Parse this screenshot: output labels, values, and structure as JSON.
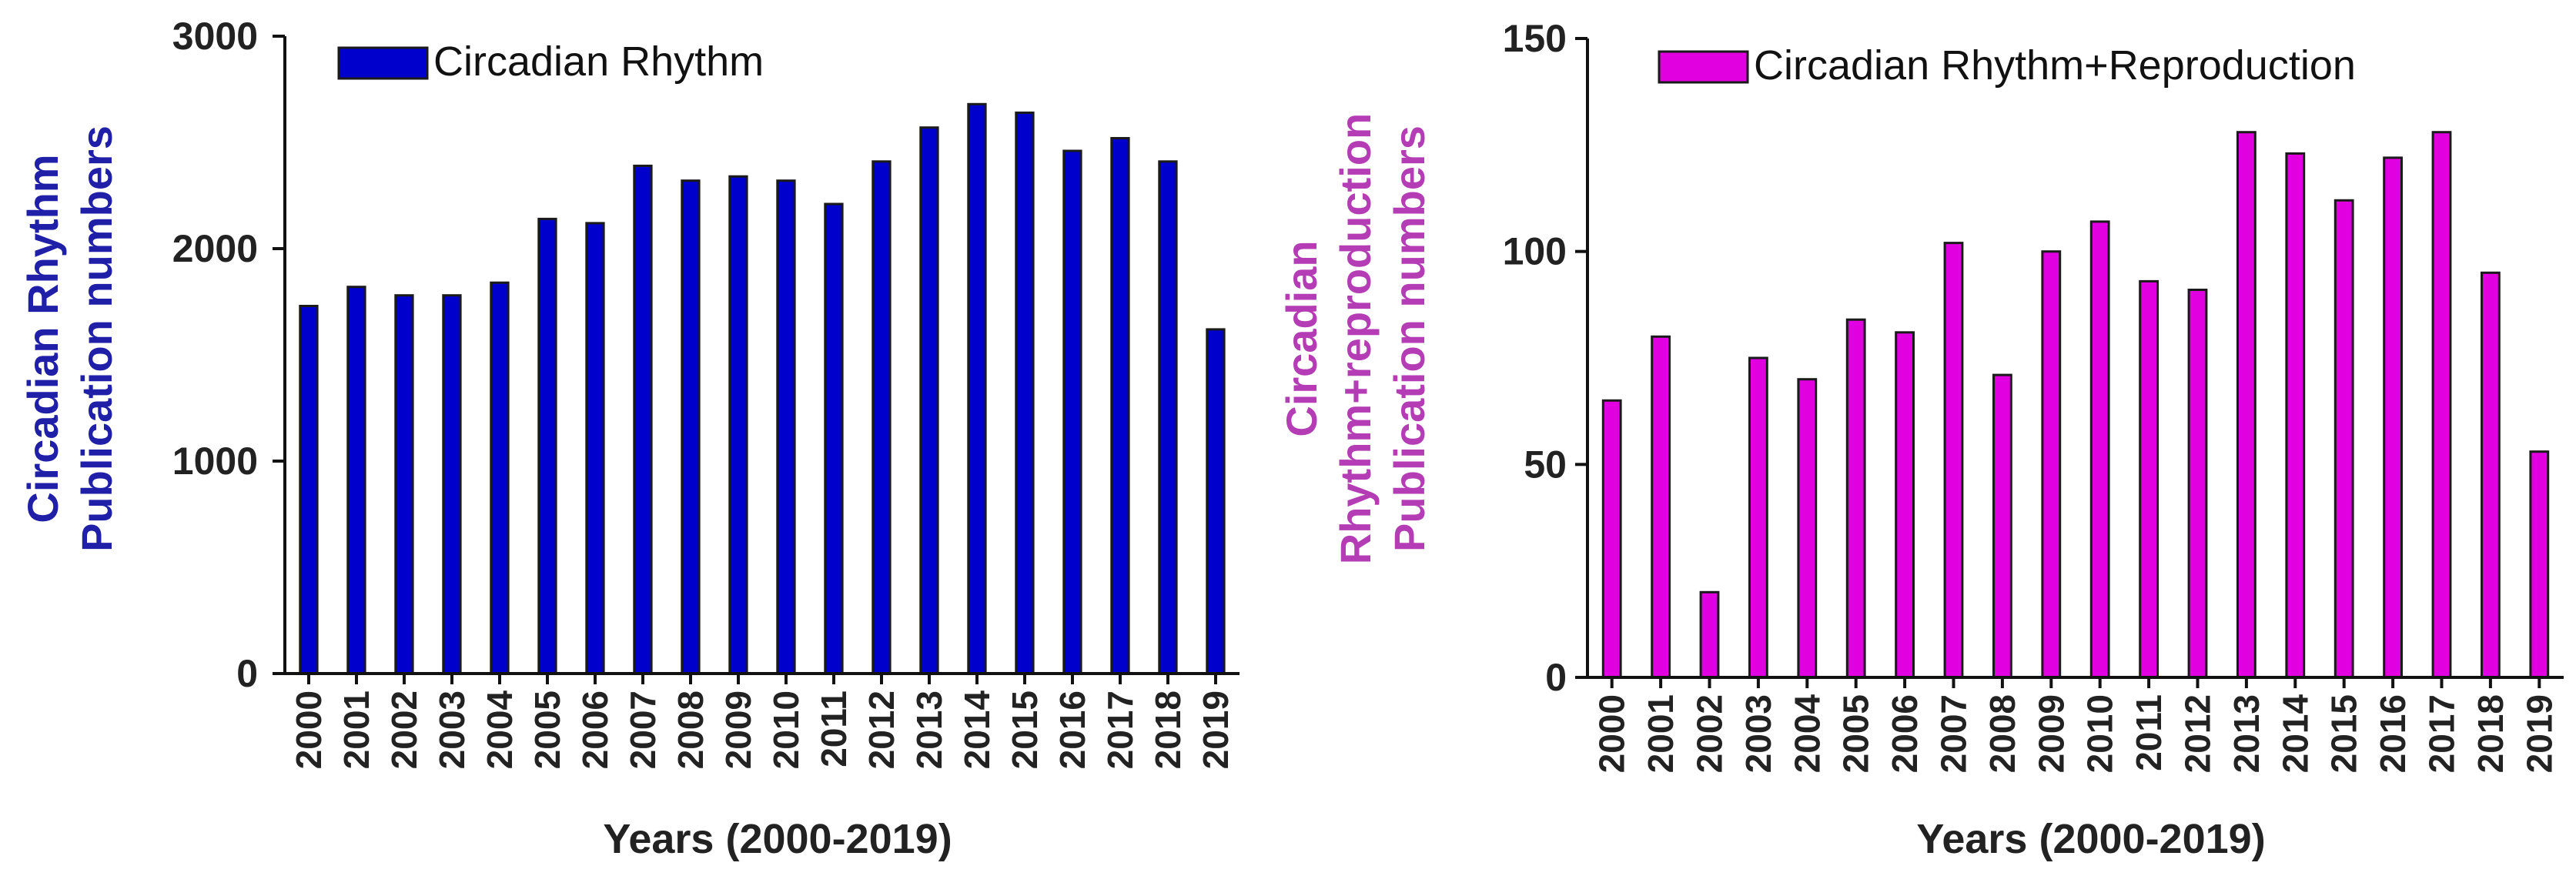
{
  "chart_data": [
    {
      "type": "bar",
      "categories": [
        "2000",
        "2001",
        "2002",
        "2003",
        "2004",
        "2005",
        "2006",
        "2007",
        "2008",
        "2009",
        "2010",
        "2011",
        "2012",
        "2013",
        "2014",
        "2015",
        "2016",
        "2017",
        "2018",
        "2019"
      ],
      "series": [
        {
          "name": "Circadian Rhythm",
          "color": "#0000cc",
          "values": [
            1730,
            1820,
            1780,
            1780,
            1840,
            2140,
            2120,
            2390,
            2320,
            2340,
            2320,
            2210,
            2410,
            2570,
            2680,
            2640,
            2460,
            2520,
            2410,
            1620
          ]
        }
      ],
      "xlabel": "Years (2000-2019)",
      "ylabel": [
        "Circadian Rhythm",
        "Publication numbers"
      ],
      "ylabel_color": "#1f1fa8",
      "ylim": [
        0,
        3000
      ],
      "yticks": [
        0,
        1000,
        2000,
        3000
      ],
      "legend_position": "top-left",
      "grid": false
    },
    {
      "type": "bar",
      "categories": [
        "2000",
        "2001",
        "2002",
        "2003",
        "2004",
        "2005",
        "2006",
        "2007",
        "2008",
        "2009",
        "2010",
        "2011",
        "2012",
        "2013",
        "2014",
        "2015",
        "2016",
        "2017",
        "2018",
        "2019"
      ],
      "series": [
        {
          "name": "Circadian Rhythm+Reproduction",
          "color": "#e000e0",
          "values": [
            65,
            80,
            20,
            75,
            70,
            84,
            81,
            102,
            71,
            100,
            107,
            93,
            91,
            128,
            123,
            112,
            122,
            128,
            95,
            53
          ]
        }
      ],
      "xlabel": "Years (2000-2019)",
      "ylabel": [
        "Circadian",
        "Rhythm+reproduction",
        "Publication numbers"
      ],
      "ylabel_color": "#b43cb4",
      "ylim": [
        0,
        150
      ],
      "yticks": [
        0,
        50,
        100,
        150
      ],
      "legend_position": "top",
      "grid": false
    }
  ]
}
